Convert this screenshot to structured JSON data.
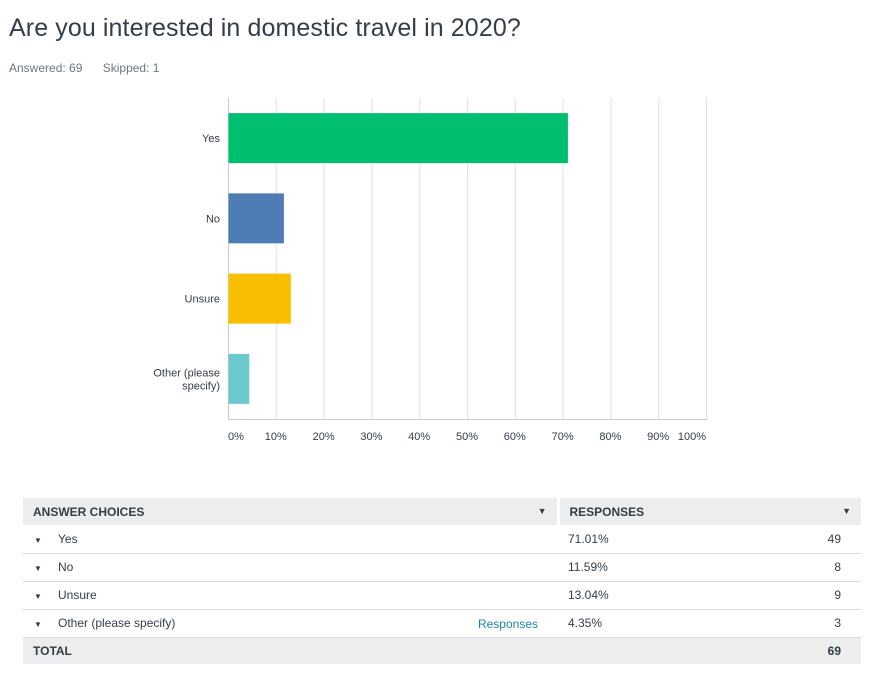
{
  "question": {
    "title": "Are you interested in domestic travel in 2020?",
    "answered": "Answered: 69",
    "skipped": "Skipped: 1"
  },
  "colors": {
    "grid": "#e0e2e4",
    "axis": "#c7cbcf",
    "text": "#333e48"
  },
  "chart_data": {
    "type": "bar",
    "orientation": "horizontal",
    "categories": [
      "Yes",
      "No",
      "Unsure",
      "Other (please specify)"
    ],
    "category_lines": [
      [
        "Yes"
      ],
      [
        "No"
      ],
      [
        "Unsure"
      ],
      [
        "Other (please",
        "specify)"
      ]
    ],
    "values": [
      71.01,
      11.59,
      13.04,
      4.35
    ],
    "colors": [
      "#00bf6f",
      "#507cb6",
      "#f9be00",
      "#6bc8cd"
    ],
    "xlim": [
      0,
      100
    ],
    "xticks": [
      "0%",
      "10%",
      "20%",
      "30%",
      "40%",
      "50%",
      "60%",
      "70%",
      "80%",
      "90%",
      "100%"
    ],
    "grid": true
  },
  "table": {
    "headers": {
      "choices": "ANSWER CHOICES",
      "responses": "RESPONSES"
    },
    "rows": [
      {
        "choice": "Yes",
        "percent": "71.01%",
        "count": "49",
        "link": ""
      },
      {
        "choice": "No",
        "percent": "11.59%",
        "count": "8",
        "link": ""
      },
      {
        "choice": "Unsure",
        "percent": "13.04%",
        "count": "9",
        "link": ""
      },
      {
        "choice": "Other (please specify)",
        "percent": "4.35%",
        "count": "3",
        "link": "Responses"
      }
    ],
    "total_label": "TOTAL",
    "total_count": "69"
  }
}
